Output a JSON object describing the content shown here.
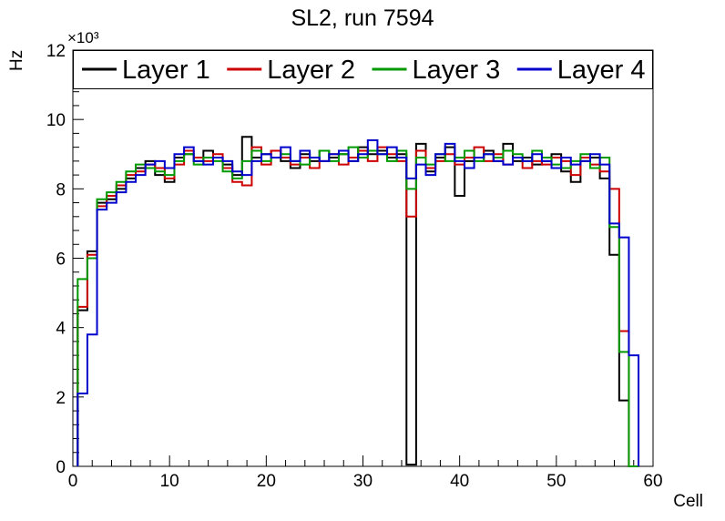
{
  "title": "SL2, run 7594",
  "axes": {
    "x_label": "Cell",
    "y_label": "Hz",
    "y_axis_multiplier_label": "×10³"
  },
  "chart_data": {
    "type": "line",
    "subtype": "step-histogram",
    "title": "SL2, run 7594",
    "xlabel": "Cell",
    "ylabel": "Hz",
    "y_axis_multiplier_label": "×10³",
    "xlim": [
      0,
      60
    ],
    "ylim": [
      0,
      12000
    ],
    "x_ticks": [
      0,
      10,
      20,
      30,
      40,
      50,
      60
    ],
    "y_ticks": [
      0,
      2000,
      4000,
      6000,
      8000,
      10000,
      12000
    ],
    "y_tick_labels": [
      "0",
      "2",
      "4",
      "6",
      "8",
      "10",
      "12"
    ],
    "x_minor_step": 2,
    "y_minor_step": 400,
    "grid": false,
    "legend_position": "top-inside-full-width",
    "x_start": 0.5,
    "bin_width": 1,
    "line_width": 2,
    "series": [
      {
        "name": "Layer 1",
        "color": "#000000",
        "values": [
          4500,
          6200,
          7600,
          7700,
          8000,
          8300,
          8600,
          8800,
          8400,
          8200,
          8900,
          9000,
          8800,
          9100,
          8900,
          8700,
          8400,
          9500,
          8900,
          9000,
          9100,
          8800,
          8600,
          9000,
          8800,
          9100,
          8900,
          9000,
          8800,
          9200,
          9000,
          9100,
          8900,
          9000,
          50,
          9300,
          8500,
          8900,
          9200,
          7800,
          8800,
          8900,
          9100,
          8800,
          9300,
          8800,
          8900,
          8700,
          8800,
          9000,
          8500,
          8200,
          8800,
          8900,
          8300,
          6100,
          1900,
          0
        ]
      },
      {
        "name": "Layer 2",
        "color": "#cc0000",
        "values": [
          4600,
          6100,
          7500,
          7800,
          8100,
          8400,
          8500,
          8700,
          8600,
          8300,
          8700,
          9100,
          8900,
          8800,
          9000,
          8600,
          8200,
          8100,
          9200,
          8700,
          9100,
          8900,
          8700,
          8900,
          8600,
          8800,
          9000,
          8700,
          8900,
          9100,
          8800,
          9200,
          9000,
          8800,
          7200,
          9100,
          8600,
          8800,
          9000,
          8700,
          8900,
          9200,
          8800,
          9000,
          8700,
          8900,
          8600,
          8800,
          8700,
          8900,
          8800,
          8400,
          8900,
          8700,
          8500,
          8000,
          3900,
          0
        ]
      },
      {
        "name": "Layer 3",
        "color": "#009900",
        "values": [
          5400,
          6000,
          7700,
          7900,
          8200,
          8500,
          8700,
          8600,
          8500,
          8400,
          8800,
          9000,
          8700,
          8900,
          8800,
          8500,
          8300,
          8800,
          9100,
          8800,
          8900,
          9000,
          8800,
          8700,
          8900,
          9100,
          8800,
          9000,
          9200,
          8900,
          9100,
          9000,
          8800,
          9100,
          8000,
          8900,
          8700,
          9000,
          8800,
          8900,
          9100,
          8800,
          9000,
          8900,
          9100,
          9000,
          8800,
          9100,
          8900,
          8700,
          8600,
          8800,
          9000,
          8600,
          8900,
          6900,
          3300,
          0
        ]
      },
      {
        "name": "Layer 4",
        "color": "#0000cc",
        "values": [
          2100,
          3800,
          7400,
          7600,
          7900,
          8200,
          8400,
          8700,
          8800,
          8600,
          9000,
          9200,
          8800,
          8700,
          8900,
          8800,
          8500,
          8400,
          8800,
          9000,
          8900,
          9200,
          8800,
          9100,
          8900,
          8800,
          9000,
          9100,
          8800,
          9000,
          9400,
          9000,
          9200,
          8900,
          8300,
          8700,
          8400,
          9000,
          9300,
          8800,
          8600,
          8900,
          9000,
          8800,
          8700,
          8900,
          8800,
          9000,
          8800,
          8600,
          8900,
          8700,
          8800,
          9000,
          8700,
          7000,
          6600,
          3200
        ]
      }
    ]
  }
}
